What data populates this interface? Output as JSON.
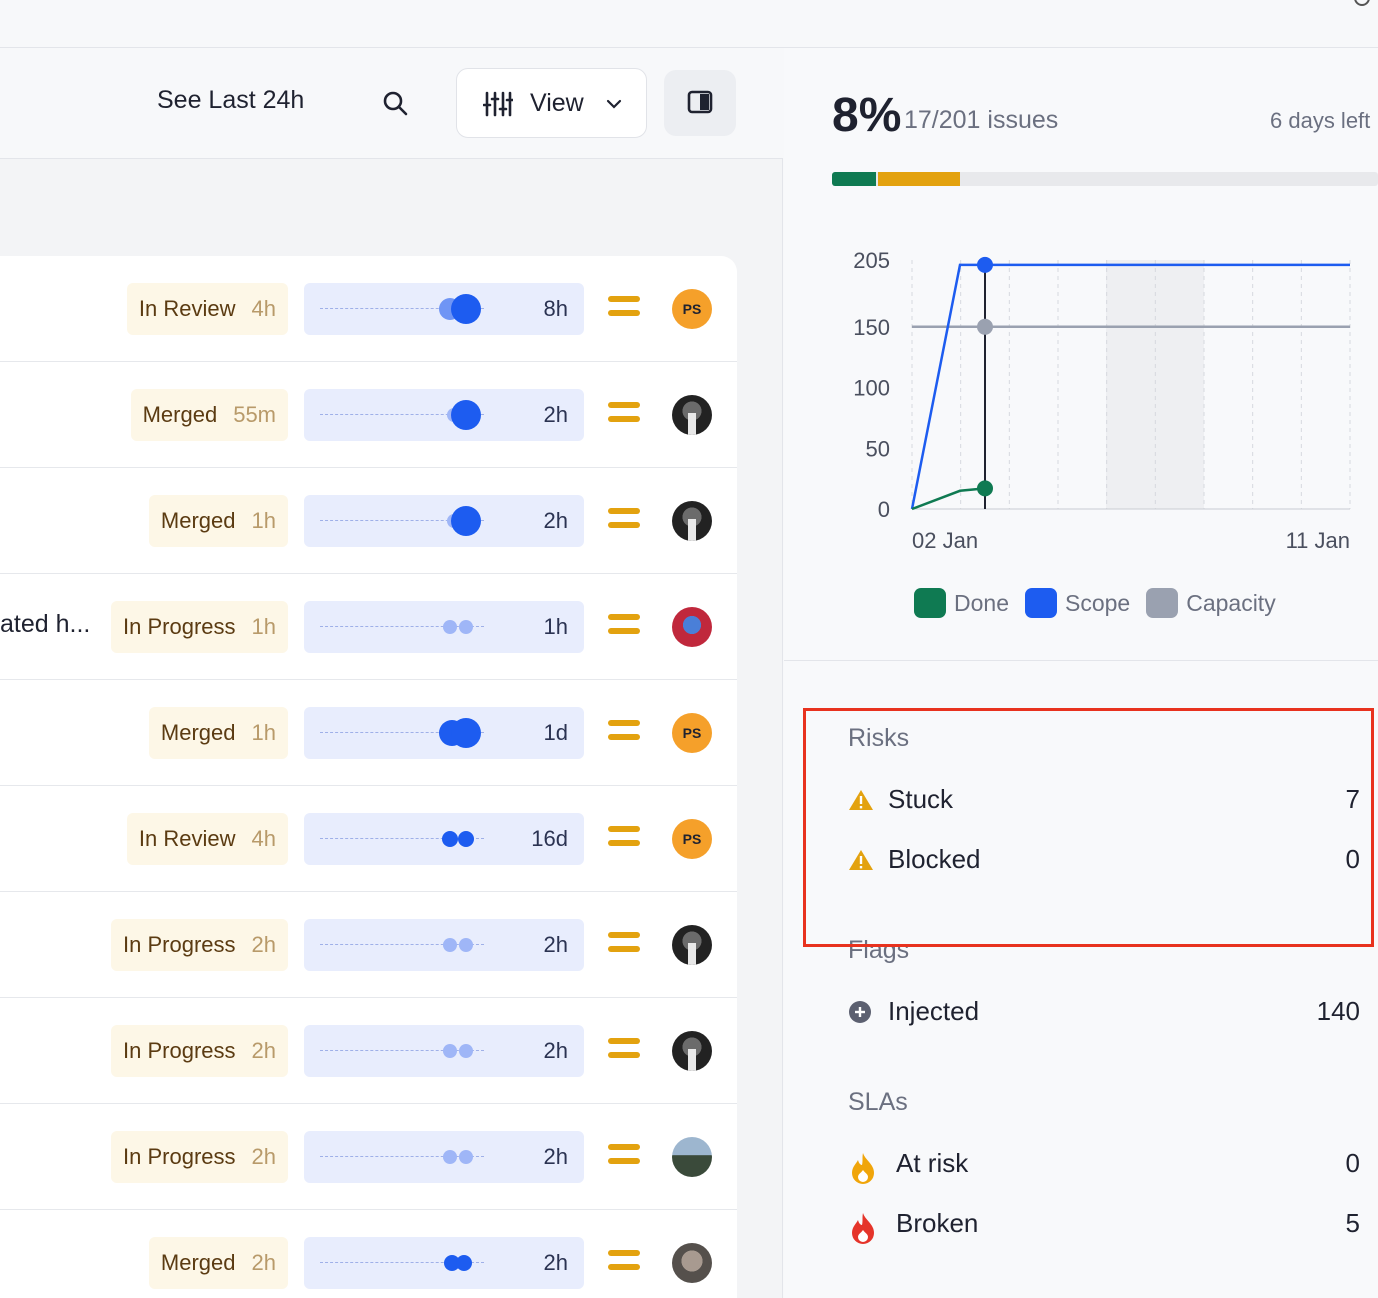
{
  "toolbar": {
    "see_last": "See Last 24h",
    "view_label": "View"
  },
  "rows": [
    {
      "title": "",
      "status": "In Review",
      "status_time": "4h",
      "duration": "8h",
      "avatar": "PS",
      "avatar_style": "ps"
    },
    {
      "title": "",
      "status": "Merged",
      "status_time": "55m",
      "duration": "2h",
      "avatar": "",
      "avatar_style": "photo"
    },
    {
      "title": "",
      "status": "Merged",
      "status_time": "1h",
      "duration": "2h",
      "avatar": "",
      "avatar_style": "photo"
    },
    {
      "title": "ated h...",
      "status": "In Progress",
      "status_time": "1h",
      "duration": "1h",
      "avatar": "",
      "avatar_style": "colorful"
    },
    {
      "title": "",
      "status": "Merged",
      "status_time": "1h",
      "duration": "1d",
      "avatar": "PS",
      "avatar_style": "ps"
    },
    {
      "title": "",
      "status": "In Review",
      "status_time": "4h",
      "duration": "16d",
      "avatar": "PS",
      "avatar_style": "ps"
    },
    {
      "title": "",
      "status": "In Progress",
      "status_time": "2h",
      "duration": "2h",
      "avatar": "",
      "avatar_style": "photo"
    },
    {
      "title": "",
      "status": "In Progress",
      "status_time": "2h",
      "duration": "2h",
      "avatar": "",
      "avatar_style": "photo"
    },
    {
      "title": "",
      "status": "In Progress",
      "status_time": "2h",
      "duration": "2h",
      "avatar": "",
      "avatar_style": "outdoor"
    },
    {
      "title": "",
      "status": "Merged",
      "status_time": "2h",
      "duration": "2h",
      "avatar": "",
      "avatar_style": "grey"
    }
  ],
  "summary": {
    "percent": "8%",
    "issues": "17/201 issues",
    "days_left": "6 days left",
    "done_fraction": 0.08,
    "in_progress_fraction": 0.15
  },
  "chart_data": {
    "type": "line",
    "y_ticks": [
      "205",
      "150",
      "100",
      "50",
      "0"
    ],
    "x_labels": [
      "02 Jan",
      "11 Jan"
    ],
    "ylim": [
      0,
      205
    ],
    "series": [
      {
        "name": "Done",
        "color": "#0f7a52"
      },
      {
        "name": "Scope",
        "color": "#1d5cf0"
      },
      {
        "name": "Capacity",
        "color": "#9aa1b0"
      }
    ]
  },
  "sections": {
    "risks": {
      "title": "Risks",
      "items": [
        {
          "label": "Stuck",
          "value": "7"
        },
        {
          "label": "Blocked",
          "value": "0"
        }
      ]
    },
    "flags": {
      "title": "Flags",
      "items": [
        {
          "label": "Injected",
          "value": "140"
        }
      ]
    },
    "slas": {
      "title": "SLAs",
      "items": [
        {
          "label": "At risk",
          "value": "0"
        },
        {
          "label": "Broken",
          "value": "5"
        }
      ]
    }
  },
  "colors": {
    "accent_blue": "#1d5cf0",
    "done_green": "#0f7a52",
    "warning_amber": "#e3a20f",
    "highlight_red": "#e8321e"
  }
}
